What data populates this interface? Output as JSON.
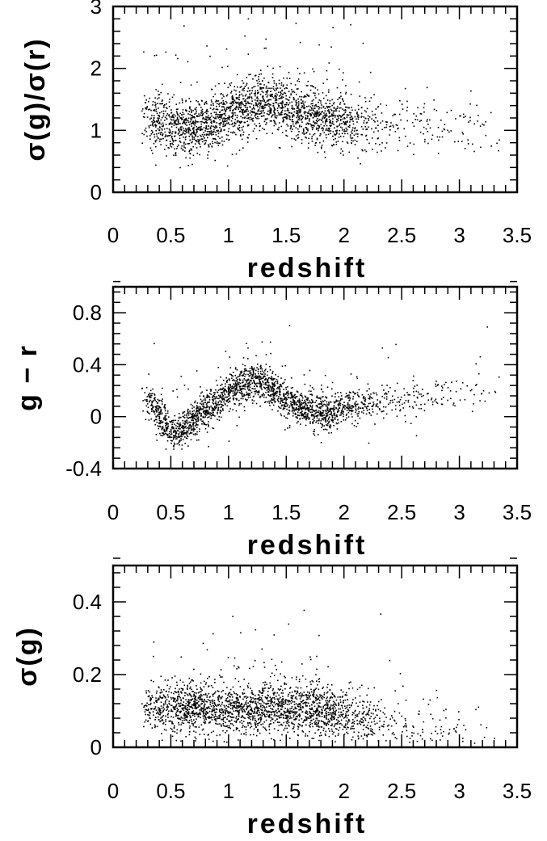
{
  "chart_data": [
    {
      "type": "scatter",
      "xlabel": "redshift",
      "ylabel": "σ(g)/σ(r)",
      "xlim": [
        0,
        3.5
      ],
      "ylim": [
        0,
        3
      ],
      "xticks": [
        "0",
        "0.5",
        "1",
        "1.5",
        "2",
        "2.5",
        "3",
        "3.5"
      ],
      "xtick_values": [
        0,
        0.5,
        1,
        1.5,
        2,
        2.5,
        3,
        3.5
      ],
      "yticks": [
        "0",
        "1",
        "2",
        "3"
      ],
      "ytick_values": [
        0,
        1,
        2,
        3
      ],
      "grid": false,
      "marker_color": "#000000",
      "trend": [
        [
          0.25,
          1.2
        ],
        [
          0.4,
          1.12
        ],
        [
          0.55,
          1.05
        ],
        [
          0.7,
          1.02
        ],
        [
          0.85,
          1.1
        ],
        [
          1.0,
          1.28
        ],
        [
          1.15,
          1.38
        ],
        [
          1.3,
          1.45
        ],
        [
          1.45,
          1.42
        ],
        [
          1.6,
          1.3
        ],
        [
          1.75,
          1.22
        ],
        [
          1.9,
          1.15
        ],
        [
          2.1,
          1.12
        ],
        [
          2.3,
          1.08
        ],
        [
          2.6,
          1.05
        ],
        [
          3.0,
          1.05
        ],
        [
          3.3,
          1.05
        ]
      ],
      "density": [
        [
          0.25,
          0.02
        ],
        [
          0.35,
          0.08
        ],
        [
          0.5,
          0.09
        ],
        [
          0.7,
          0.11
        ],
        [
          0.9,
          0.09
        ],
        [
          1.1,
          0.1
        ],
        [
          1.3,
          0.11
        ],
        [
          1.5,
          0.1
        ],
        [
          1.7,
          0.1
        ],
        [
          1.9,
          0.09
        ],
        [
          2.1,
          0.05
        ],
        [
          2.3,
          0.025
        ],
        [
          2.5,
          0.015
        ],
        [
          3.0,
          0.008
        ],
        [
          3.35,
          0.004
        ]
      ],
      "scatter_sd": 0.22,
      "n_points": 2300,
      "y_clip": [
        0.3,
        2.8
      ],
      "seed": 11
    },
    {
      "type": "scatter",
      "xlabel": "redshift",
      "ylabel": "g − r",
      "xlim": [
        0,
        3.5
      ],
      "ylim": [
        -0.4,
        1.0
      ],
      "xticks": [
        "0",
        "0.5",
        "1",
        "1.5",
        "2",
        "2.5",
        "3",
        "3.5"
      ],
      "xtick_values": [
        0,
        0.5,
        1,
        1.5,
        2,
        2.5,
        3,
        3.5
      ],
      "yticks": [
        "-0.4",
        "0",
        "0.4",
        "0.8"
      ],
      "ytick_values": [
        -0.4,
        0,
        0.4,
        0.8
      ],
      "grid": false,
      "marker_color": "#000000",
      "trend": [
        [
          0.25,
          0.2
        ],
        [
          0.35,
          0.08
        ],
        [
          0.5,
          -0.12
        ],
        [
          0.6,
          -0.1
        ],
        [
          0.7,
          -0.02
        ],
        [
          0.85,
          0.08
        ],
        [
          1.0,
          0.18
        ],
        [
          1.1,
          0.24
        ],
        [
          1.2,
          0.27
        ],
        [
          1.3,
          0.26
        ],
        [
          1.4,
          0.2
        ],
        [
          1.5,
          0.12
        ],
        [
          1.6,
          0.08
        ],
        [
          1.75,
          0.04
        ],
        [
          1.85,
          0.02
        ],
        [
          2.0,
          0.06
        ],
        [
          2.2,
          0.1
        ],
        [
          2.5,
          0.12
        ],
        [
          2.8,
          0.16
        ],
        [
          3.0,
          0.2
        ],
        [
          3.3,
          0.22
        ]
      ],
      "density": [
        [
          0.25,
          0.02
        ],
        [
          0.35,
          0.08
        ],
        [
          0.5,
          0.09
        ],
        [
          0.7,
          0.11
        ],
        [
          0.9,
          0.09
        ],
        [
          1.1,
          0.1
        ],
        [
          1.3,
          0.11
        ],
        [
          1.5,
          0.1
        ],
        [
          1.7,
          0.1
        ],
        [
          1.9,
          0.09
        ],
        [
          2.1,
          0.05
        ],
        [
          2.3,
          0.025
        ],
        [
          2.5,
          0.015
        ],
        [
          3.0,
          0.008
        ],
        [
          3.35,
          0.004
        ]
      ],
      "scatter_sd": 0.065,
      "n_points": 2300,
      "y_clip": [
        -0.28,
        0.9
      ],
      "seed": 23
    },
    {
      "type": "scatter",
      "xlabel": "redshift",
      "ylabel": "σ(g)",
      "xlim": [
        0,
        3.5
      ],
      "ylim": [
        0,
        0.5
      ],
      "xticks": [
        "0",
        "0.5",
        "1",
        "1.5",
        "2",
        "2.5",
        "3",
        "3.5"
      ],
      "xtick_values": [
        0,
        0.5,
        1,
        1.5,
        2,
        2.5,
        3,
        3.5
      ],
      "yticks": [
        "0",
        "0.2",
        "0.4"
      ],
      "ytick_values": [
        0,
        0.2,
        0.4
      ],
      "grid": false,
      "marker_color": "#000000",
      "trend": [
        [
          0.25,
          0.1
        ],
        [
          0.5,
          0.11
        ],
        [
          0.8,
          0.11
        ],
        [
          1.0,
          0.1
        ],
        [
          1.2,
          0.1
        ],
        [
          1.5,
          0.11
        ],
        [
          1.8,
          0.1
        ],
        [
          2.1,
          0.08
        ],
        [
          2.4,
          0.06
        ],
        [
          2.8,
          0.05
        ],
        [
          3.3,
          0.05
        ]
      ],
      "density": [
        [
          0.25,
          0.02
        ],
        [
          0.35,
          0.08
        ],
        [
          0.5,
          0.09
        ],
        [
          0.7,
          0.11
        ],
        [
          0.9,
          0.09
        ],
        [
          1.1,
          0.1
        ],
        [
          1.3,
          0.11
        ],
        [
          1.5,
          0.1
        ],
        [
          1.7,
          0.1
        ],
        [
          1.9,
          0.09
        ],
        [
          2.1,
          0.05
        ],
        [
          2.3,
          0.025
        ],
        [
          2.5,
          0.015
        ],
        [
          3.0,
          0.008
        ],
        [
          3.35,
          0.004
        ]
      ],
      "scatter_sd": 0.035,
      "n_points": 2300,
      "y_clip": [
        0.01,
        0.45
      ],
      "seed": 37
    }
  ]
}
